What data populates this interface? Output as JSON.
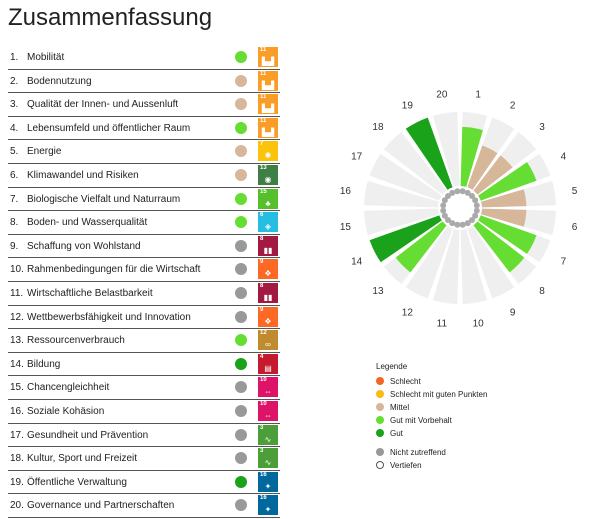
{
  "title": "Zusammenfassung",
  "colors": {
    "schlecht": "#f26522",
    "schlecht_gute_punkte": "#fdb913",
    "mittel": "#d7b79a",
    "gut_vorbehalt": "#66dd33",
    "gut": "#1aa31a",
    "nicht_zutreffend": "#999999",
    "vertiefen": "#ffffff"
  },
  "criteria": [
    {
      "num": "1.",
      "name": "Mobilität",
      "rating": "gut_vorbehalt",
      "sdg": "11",
      "sdg_color": "#f99d26",
      "sdg_icon": "city-icon"
    },
    {
      "num": "2.",
      "name": "Bodennutzung",
      "rating": "mittel",
      "sdg": "11",
      "sdg_color": "#f99d26",
      "sdg_icon": "city-icon"
    },
    {
      "num": "3.",
      "name": "Qualität der Innen- und Aussenluft",
      "rating": "mittel",
      "sdg": "11",
      "sdg_color": "#f99d26",
      "sdg_icon": "city-icon"
    },
    {
      "num": "4.",
      "name": "Lebensumfeld und öffentlicher Raum",
      "rating": "gut_vorbehalt",
      "sdg": "11",
      "sdg_color": "#f99d26",
      "sdg_icon": "city-icon"
    },
    {
      "num": "5.",
      "name": "Energie",
      "rating": "mittel",
      "sdg": "7",
      "sdg_color": "#fcc30b",
      "sdg_icon": "sun-icon"
    },
    {
      "num": "6.",
      "name": "Klimawandel und Risiken",
      "rating": "mittel",
      "sdg": "13",
      "sdg_color": "#3f7e44",
      "sdg_icon": "eye-icon"
    },
    {
      "num": "7.",
      "name": "Biologische Vielfalt und Naturraum",
      "rating": "gut_vorbehalt",
      "sdg": "15",
      "sdg_color": "#56c02b",
      "sdg_icon": "tree-icon"
    },
    {
      "num": "8.",
      "name": "Boden- und Wasserqualität",
      "rating": "gut_vorbehalt",
      "sdg": "6",
      "sdg_color": "#26bde2",
      "sdg_icon": "water-icon"
    },
    {
      "num": "9.",
      "name": "Schaffung von Wohlstand",
      "rating": "nicht_zutreffend",
      "sdg": "8",
      "sdg_color": "#a21942",
      "sdg_icon": "chart-icon"
    },
    {
      "num": "10.",
      "name": "Rahmenbedingungen für die Wirtschaft",
      "rating": "nicht_zutreffend",
      "sdg": "9",
      "sdg_color": "#fd6925",
      "sdg_icon": "cubes-icon"
    },
    {
      "num": "11.",
      "name": "Wirtschaftliche Belastbarkeit",
      "rating": "nicht_zutreffend",
      "sdg": "8",
      "sdg_color": "#a21942",
      "sdg_icon": "chart-icon"
    },
    {
      "num": "12.",
      "name": "Wettbewerbsfähigkeit und Innovation",
      "rating": "nicht_zutreffend",
      "sdg": "9",
      "sdg_color": "#fd6925",
      "sdg_icon": "cubes-icon"
    },
    {
      "num": "13.",
      "name": "Ressourcenverbrauch",
      "rating": "gut_vorbehalt",
      "sdg": "12",
      "sdg_color": "#bf8b2e",
      "sdg_icon": "infinity-icon"
    },
    {
      "num": "14.",
      "name": "Bildung",
      "rating": "gut",
      "sdg": "4",
      "sdg_color": "#c5192d",
      "sdg_icon": "book-icon"
    },
    {
      "num": "15.",
      "name": "Chancengleichheit",
      "rating": "nicht_zutreffend",
      "sdg": "10",
      "sdg_color": "#dd1367",
      "sdg_icon": "equality-icon"
    },
    {
      "num": "16.",
      "name": "Soziale Kohäsion",
      "rating": "nicht_zutreffend",
      "sdg": "10",
      "sdg_color": "#dd1367",
      "sdg_icon": "equality-icon"
    },
    {
      "num": "17.",
      "name": "Gesundheit und Prävention",
      "rating": "nicht_zutreffend",
      "sdg": "3",
      "sdg_color": "#4c9f38",
      "sdg_icon": "heartbeat-icon"
    },
    {
      "num": "18.",
      "name": "Kultur, Sport und Freizeit",
      "rating": "nicht_zutreffend",
      "sdg": "3",
      "sdg_color": "#4c9f38",
      "sdg_icon": "heartbeat-icon"
    },
    {
      "num": "19.",
      "name": "Öffentliche Verwaltung",
      "rating": "gut",
      "sdg": "16",
      "sdg_color": "#00689d",
      "sdg_icon": "dove-icon"
    },
    {
      "num": "20.",
      "name": "Governance und Partnerschaften",
      "rating": "nicht_zutreffend",
      "sdg": "16",
      "sdg_color": "#00689d",
      "sdg_icon": "dove-icon"
    }
  ],
  "legend": {
    "title": "Legende",
    "items": [
      {
        "key": "schlecht",
        "label": "Schlecht"
      },
      {
        "key": "schlecht_gute_punkte",
        "label": "Schlecht mit guten Punkten"
      },
      {
        "key": "mittel",
        "label": "Mittel"
      },
      {
        "key": "gut_vorbehalt",
        "label": "Gut mit Vorbehalt"
      },
      {
        "key": "gut",
        "label": "Gut"
      }
    ],
    "extra_items": [
      {
        "key": "nicht_zutreffend",
        "label": "Nicht zutreffend"
      },
      {
        "key": "vertiefen",
        "label": "Vertiefen"
      }
    ]
  },
  "chart_data": {
    "type": "polar-bar",
    "categories": [
      "1",
      "2",
      "3",
      "4",
      "5",
      "6",
      "7",
      "8",
      "9",
      "10",
      "11",
      "12",
      "13",
      "14",
      "15",
      "16",
      "17",
      "18",
      "19",
      "20"
    ],
    "levels": [
      "nicht_zutreffend",
      "schlecht",
      "schlecht_gute_punkte",
      "mittel",
      "gut_vorbehalt",
      "gut"
    ],
    "ratings": [
      "gut_vorbehalt",
      "mittel",
      "mittel",
      "gut_vorbehalt",
      "mittel",
      "mittel",
      "gut_vorbehalt",
      "gut_vorbehalt",
      "nicht_zutreffend",
      "nicht_zutreffend",
      "nicht_zutreffend",
      "nicht_zutreffend",
      "gut_vorbehalt",
      "gut",
      "nicht_zutreffend",
      "nicht_zutreffend",
      "nicht_zutreffend",
      "nicht_zutreffend",
      "gut",
      "nicht_zutreffend"
    ],
    "values": [
      4,
      3,
      3,
      4,
      3,
      3,
      4,
      4,
      0,
      0,
      0,
      0,
      4,
      5,
      0,
      0,
      0,
      0,
      5,
      0
    ],
    "max": 5
  }
}
